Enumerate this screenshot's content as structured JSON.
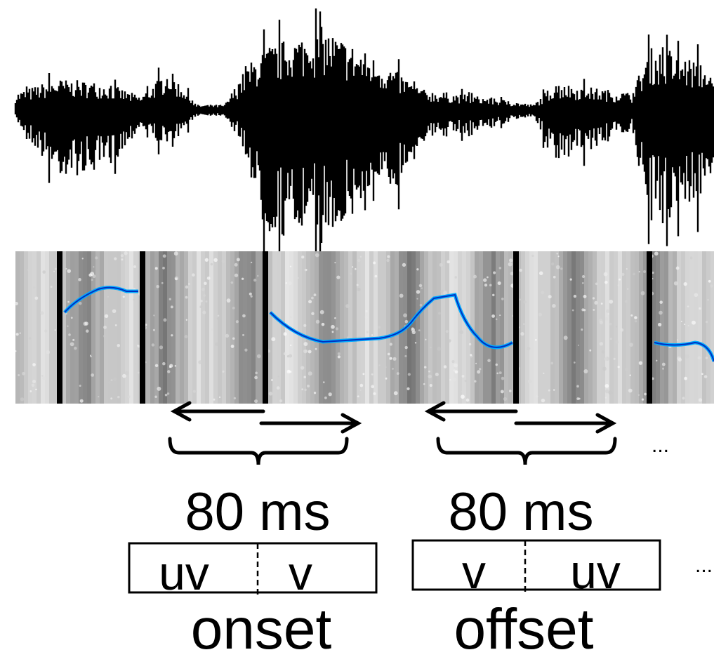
{
  "segments": [
    {
      "duration": "80 ms",
      "left": "uv",
      "right": "v",
      "label": "onset"
    },
    {
      "duration": "80 ms",
      "left": "v",
      "right": "uv",
      "label": "offset"
    }
  ],
  "ellipses": [
    "...",
    "..."
  ]
}
